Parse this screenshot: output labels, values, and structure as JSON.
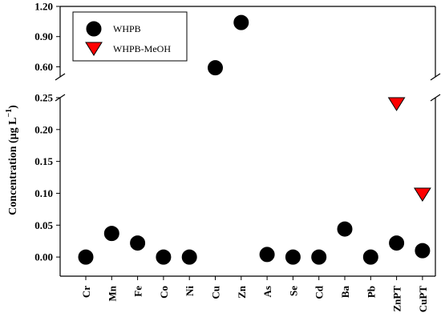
{
  "chart_data": {
    "type": "scatter",
    "ylabel": "Concentration (μg L⁻¹)",
    "ylabel_parts": {
      "main": "Concentration (μg L",
      "exp": "−1",
      "close": ")"
    },
    "categories": [
      "Cr",
      "Mn",
      "Fe",
      "Co",
      "Ni",
      "Cu",
      "Zn",
      "As",
      "Se",
      "Cd",
      "Ba",
      "Pb",
      "ZnPT",
      "CuPT"
    ],
    "y_axis_broken": true,
    "lower_segment": {
      "ylim": [
        -0.03,
        0.25
      ],
      "ticks": [
        "0.00",
        "0.05",
        "0.10",
        "0.15",
        "0.20",
        "0.25"
      ]
    },
    "upper_segment": {
      "ylim": [
        0.5,
        1.2
      ],
      "ticks": [
        "0.60",
        "0.90",
        "1.20"
      ]
    },
    "series": [
      {
        "name": "WHPB",
        "marker": "circle",
        "color": "#000000",
        "values": [
          0.0,
          0.037,
          0.022,
          0.0,
          0.0,
          0.59,
          1.04,
          0.004,
          0.0,
          0.0,
          0.044,
          0.0,
          0.022,
          0.01
        ]
      },
      {
        "name": "WHPB-MeOH",
        "marker": "triangle-down",
        "color": "#ff0000",
        "values": [
          null,
          null,
          null,
          null,
          null,
          null,
          null,
          null,
          null,
          null,
          null,
          null,
          0.24,
          0.098
        ]
      }
    ],
    "legend": {
      "position": "top-left",
      "entries": [
        "WHPB",
        "WHPB-MeOH"
      ]
    },
    "grid": false
  }
}
